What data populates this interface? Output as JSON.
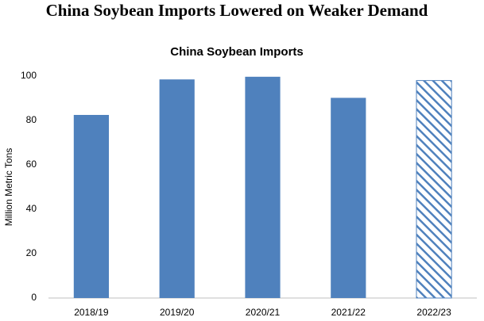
{
  "header": {
    "title": "China Soybean Imports Lowered on Weaker Demand"
  },
  "chart_data": {
    "type": "bar",
    "title": "China Soybean Imports",
    "y_label": "Million Metric Tons",
    "categories": [
      "2018/19",
      "2019/20",
      "2020/21",
      "2021/22",
      "2022/23"
    ],
    "values": [
      82.5,
      98.5,
      99.7,
      90.2,
      98.0
    ],
    "hatched": [
      false,
      false,
      false,
      false,
      true
    ],
    "color": "#4f81bd",
    "ylim": [
      0,
      100
    ],
    "yticks": [
      0,
      20,
      40,
      60,
      80,
      100
    ],
    "grid": false
  }
}
